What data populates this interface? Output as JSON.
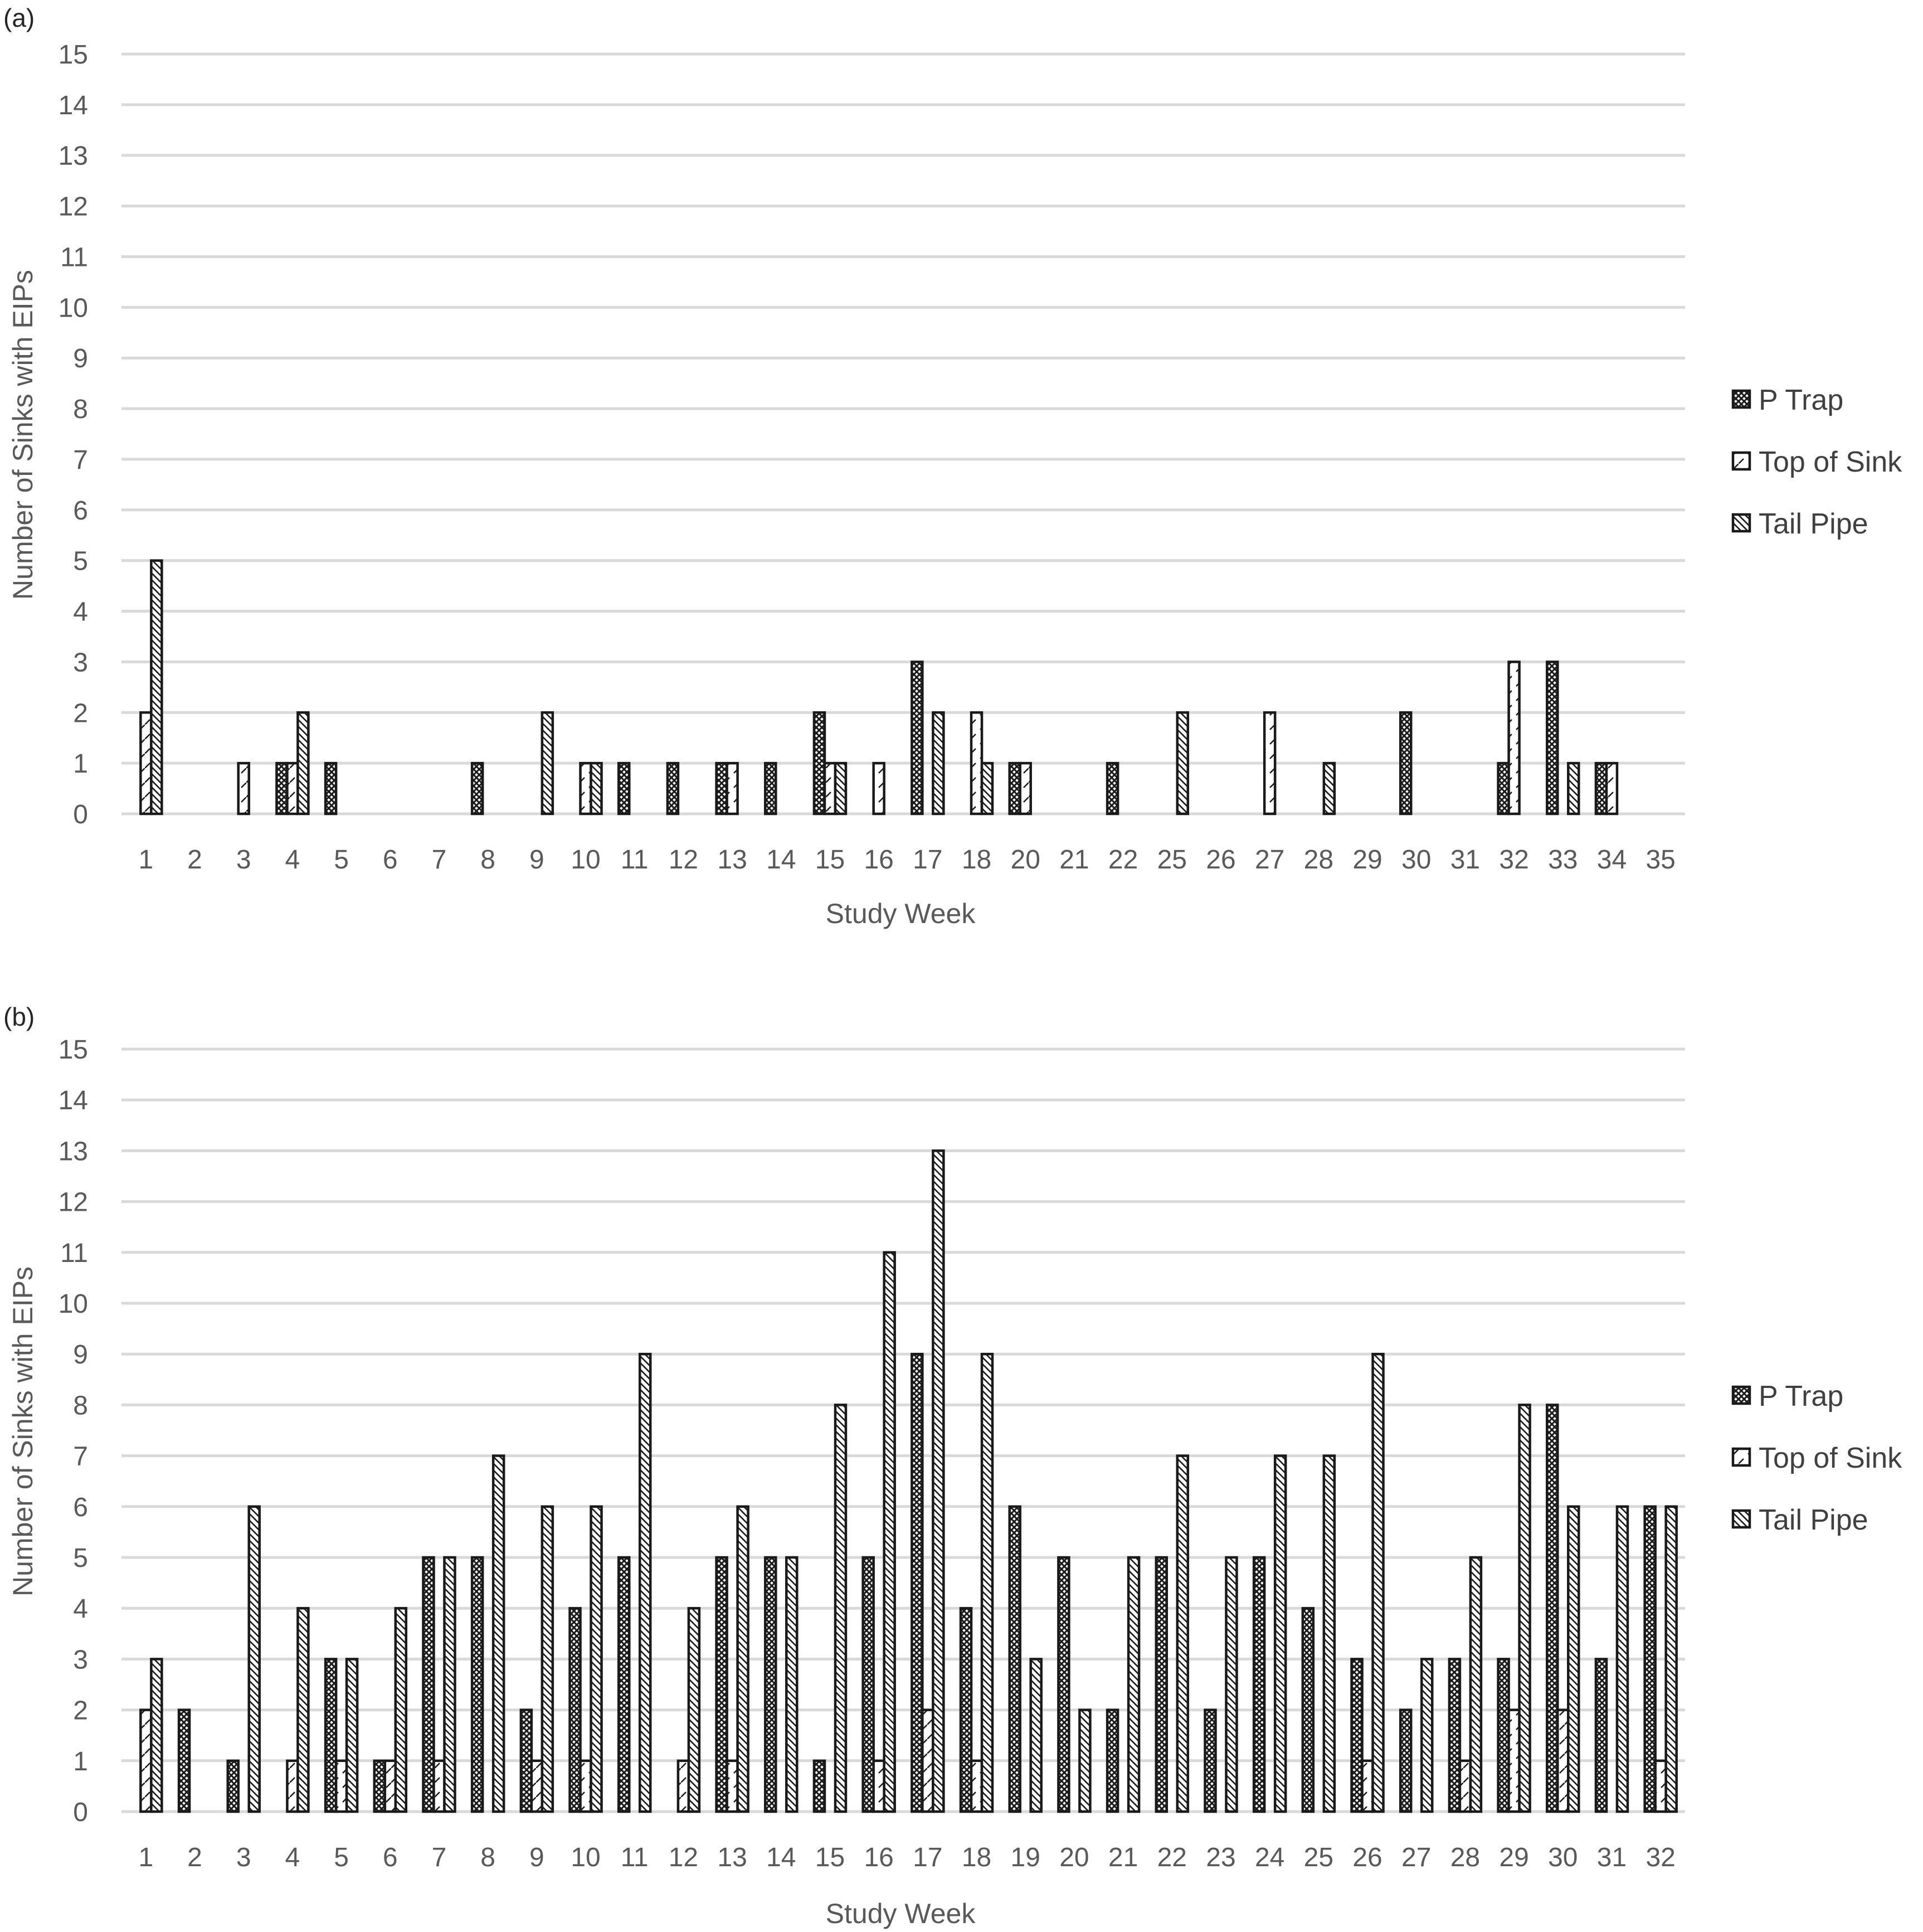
{
  "chart_data": [
    {
      "panel": "(a)",
      "type": "bar",
      "title": "",
      "xlabel": "Study Week",
      "ylabel": "Number of Sinks with EIPs",
      "ylim": [
        0,
        15
      ],
      "yticks": [
        "0",
        "1",
        "2",
        "3",
        "4",
        "5",
        "6",
        "7",
        "8",
        "9",
        "10",
        "11",
        "12",
        "13",
        "14",
        "15"
      ],
      "grid": true,
      "legend_position": "right",
      "categories": [
        "1",
        "2",
        "3",
        "4",
        "5",
        "6",
        "7",
        "8",
        "9",
        "10",
        "11",
        "12",
        "13",
        "14",
        "15",
        "16",
        "17",
        "18",
        "20",
        "21",
        "22",
        "25",
        "26",
        "27",
        "28",
        "29",
        "30",
        "31",
        "32",
        "33",
        "34",
        "35"
      ],
      "series": [
        {
          "name": "P Trap",
          "values": [
            0,
            0,
            0,
            1,
            1,
            0,
            0,
            1,
            0,
            0,
            1,
            1,
            1,
            1,
            2,
            0,
            3,
            0,
            1,
            0,
            1,
            0,
            0,
            0,
            0,
            0,
            2,
            0,
            1,
            3,
            1,
            0
          ]
        },
        {
          "name": "Top of Sink",
          "values": [
            2,
            0,
            1,
            1,
            0,
            0,
            0,
            0,
            0,
            1,
            0,
            0,
            1,
            0,
            1,
            1,
            0,
            2,
            1,
            0,
            0,
            0,
            0,
            2,
            0,
            0,
            0,
            0,
            3,
            0,
            1,
            0
          ]
        },
        {
          "name": "Tail Pipe",
          "values": [
            5,
            0,
            0,
            2,
            0,
            0,
            0,
            0,
            2,
            1,
            0,
            0,
            0,
            0,
            1,
            0,
            2,
            1,
            0,
            0,
            0,
            2,
            0,
            0,
            1,
            0,
            0,
            0,
            0,
            1,
            0,
            0
          ]
        }
      ]
    },
    {
      "panel": "(b)",
      "type": "bar",
      "title": "",
      "xlabel": "Study Week",
      "ylabel": "Number of Sinks with EIPs",
      "ylim": [
        0,
        15
      ],
      "yticks": [
        "0",
        "1",
        "2",
        "3",
        "4",
        "5",
        "6",
        "7",
        "8",
        "9",
        "10",
        "11",
        "12",
        "13",
        "14",
        "15"
      ],
      "grid": true,
      "legend_position": "right",
      "categories": [
        "1",
        "2",
        "3",
        "4",
        "5",
        "6",
        "7",
        "8",
        "9",
        "10",
        "11",
        "12",
        "13",
        "14",
        "15",
        "16",
        "17",
        "18",
        "19",
        "20",
        "21",
        "22",
        "23",
        "24",
        "25",
        "26",
        "27",
        "28",
        "29",
        "30",
        "31",
        "32"
      ],
      "series": [
        {
          "name": "P Trap",
          "values": [
            0,
            2,
            1,
            0,
            3,
            1,
            5,
            5,
            2,
            4,
            5,
            0,
            5,
            5,
            1,
            5,
            9,
            4,
            6,
            5,
            2,
            5,
            2,
            5,
            4,
            3,
            2,
            3,
            3,
            8,
            3,
            6
          ]
        },
        {
          "name": "Top of Sink",
          "values": [
            2,
            0,
            0,
            1,
            1,
            1,
            1,
            0,
            1,
            1,
            0,
            1,
            1,
            0,
            0,
            1,
            2,
            1,
            0,
            0,
            0,
            0,
            0,
            0,
            0,
            1,
            0,
            1,
            2,
            2,
            0,
            1
          ]
        },
        {
          "name": "Tail Pipe",
          "values": [
            3,
            0,
            6,
            4,
            3,
            4,
            5,
            7,
            6,
            6,
            9,
            4,
            6,
            5,
            8,
            11,
            13,
            9,
            3,
            2,
            5,
            7,
            5,
            7,
            7,
            9,
            3,
            5,
            8,
            6,
            6,
            6
          ]
        }
      ]
    }
  ],
  "colors": {
    "grid": "#d9d9d9",
    "bar_stroke": "#1a1a1a",
    "bar_fill": "#ffffff",
    "text": "#595959"
  }
}
